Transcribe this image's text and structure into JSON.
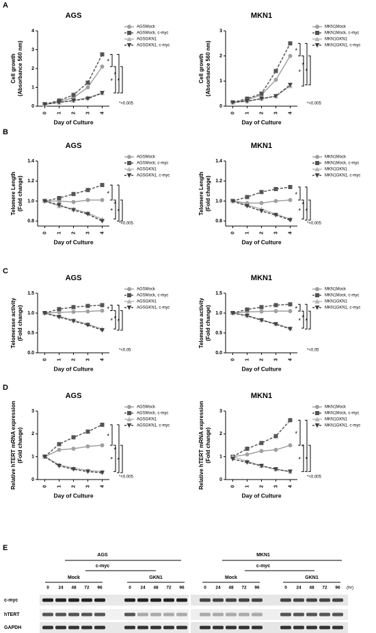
{
  "panel_labels": [
    "A",
    "B",
    "C",
    "D",
    "E"
  ],
  "chart_data": [
    {
      "type": "line",
      "title": "AGS",
      "xlabel": "Day of Culture",
      "ylabel": [
        "Cell growth",
        "(Absorbance 560 nm)"
      ],
      "x": [
        0,
        1,
        2,
        3,
        4
      ],
      "xlim": [
        -0.5,
        4.5
      ],
      "xticks": [
        0,
        1,
        2,
        3,
        4
      ],
      "ylim": [
        0,
        4
      ],
      "yticks": [
        0,
        1,
        2,
        3,
        4
      ],
      "series": [
        {
          "name": "AGSMock",
          "color": "#a0a0a0",
          "marker": "circle",
          "dashed": false,
          "values": [
            0.1,
            0.25,
            0.45,
            1.0,
            2.1
          ]
        },
        {
          "name": "AGSMock, c-myc",
          "color": "#555555",
          "marker": "square",
          "dashed": true,
          "values": [
            0.1,
            0.3,
            0.6,
            1.25,
            2.75
          ]
        },
        {
          "name": "AGSGKN1",
          "color": "#b4b4b4",
          "marker": "triangle",
          "dashed": false,
          "values": [
            0.1,
            0.2,
            0.3,
            0.45,
            0.7
          ]
        },
        {
          "name": "AGSGKN1, c-myc",
          "color": "#444444",
          "marker": "triangle-down",
          "dashed": true,
          "values": [
            0.1,
            0.2,
            0.3,
            0.4,
            0.7
          ]
        }
      ],
      "brackets": [
        "*",
        "*",
        "*",
        "*"
      ],
      "note": "*<0.005"
    },
    {
      "type": "line",
      "title": "MKN1",
      "xlabel": "Day of Culture",
      "ylabel": [
        "Cell growth",
        "(Absorbance 560 nm)"
      ],
      "x": [
        0,
        1,
        2,
        3,
        4
      ],
      "xlim": [
        -0.5,
        4.5
      ],
      "xticks": [
        0,
        1,
        2,
        3,
        4
      ],
      "ylim": [
        0,
        3
      ],
      "yticks": [
        0,
        1,
        2,
        3
      ],
      "series": [
        {
          "name": "MKN1Mock",
          "color": "#a0a0a0",
          "marker": "circle",
          "dashed": false,
          "values": [
            0.15,
            0.25,
            0.45,
            1.05,
            2.0
          ]
        },
        {
          "name": "MKN1Mock, c-myc",
          "color": "#555555",
          "marker": "square",
          "dashed": true,
          "values": [
            0.15,
            0.3,
            0.5,
            1.4,
            2.5
          ]
        },
        {
          "name": "MKN1GKN1",
          "color": "#b4b4b4",
          "marker": "triangle",
          "dashed": false,
          "values": [
            0.15,
            0.2,
            0.3,
            0.4,
            0.8
          ]
        },
        {
          "name": "MKN1GKN1, c-myc",
          "color": "#444444",
          "marker": "triangle-down",
          "dashed": true,
          "values": [
            0.15,
            0.2,
            0.3,
            0.4,
            0.85
          ]
        }
      ],
      "brackets": [
        "*",
        "*",
        "*",
        "*"
      ],
      "note": "*<0.005"
    },
    {
      "type": "line",
      "title": "AGS",
      "xlabel": "Day of Culture",
      "ylabel": [
        "Telomere Length",
        "(Fold change)"
      ],
      "x": [
        0,
        1,
        2,
        3,
        4
      ],
      "xlim": [
        -0.5,
        4.5
      ],
      "xticks": [
        0,
        1,
        2,
        3,
        4
      ],
      "ylim": [
        0.75,
        1.4
      ],
      "yticks": [
        {
          "value": 0.8,
          "label": "0.8"
        },
        {
          "value": 1,
          "label": "1.0"
        },
        {
          "value": 1.2,
          "label": "1.2"
        },
        {
          "value": 1.4,
          "label": "1.4"
        }
      ],
      "series": [
        {
          "name": "AGSMock",
          "color": "#a0a0a0",
          "marker": "circle",
          "dashed": false,
          "values": [
            1.0,
            1.0,
            0.99,
            1.01,
            1.01
          ]
        },
        {
          "name": "AGSMock, c-myc",
          "color": "#555555",
          "marker": "square",
          "dashed": true,
          "values": [
            1.0,
            1.03,
            1.07,
            1.11,
            1.16
          ]
        },
        {
          "name": "AGSGKN1",
          "color": "#b4b4b4",
          "marker": "triangle",
          "dashed": false,
          "values": [
            1.0,
            0.95,
            0.92,
            0.88,
            0.82
          ]
        },
        {
          "name": "AGSGKN1, c-myc",
          "color": "#444444",
          "marker": "triangle-down",
          "dashed": true,
          "values": [
            1.0,
            0.96,
            0.91,
            0.87,
            0.8
          ]
        }
      ],
      "brackets": [
        "*",
        "*",
        "*",
        "*"
      ],
      "note": "*<0.005"
    },
    {
      "type": "line",
      "title": "MKN1",
      "xlabel": "Day of Culture",
      "ylabel": [
        "Telomere Length",
        "(Fold change)"
      ],
      "x": [
        0,
        1,
        2,
        3,
        4
      ],
      "xlim": [
        -0.5,
        4.5
      ],
      "xticks": [
        0,
        1,
        2,
        3,
        4
      ],
      "ylim": [
        0.75,
        1.4
      ],
      "yticks": [
        {
          "value": 0.8,
          "label": "0.8"
        },
        {
          "value": 1,
          "label": "1.0"
        },
        {
          "value": 1.2,
          "label": "1.2"
        },
        {
          "value": 1.4,
          "label": "1.4"
        }
      ],
      "series": [
        {
          "name": "MKN1Mock",
          "color": "#a0a0a0",
          "marker": "circle",
          "dashed": false,
          "values": [
            1.0,
            0.98,
            0.98,
            1.0,
            1.01
          ]
        },
        {
          "name": "MKN1Mock, c-myc",
          "color": "#555555",
          "marker": "square",
          "dashed": true,
          "values": [
            1.0,
            1.04,
            1.09,
            1.12,
            1.14
          ]
        },
        {
          "name": "MKN1GKN1",
          "color": "#b4b4b4",
          "marker": "triangle",
          "dashed": false,
          "values": [
            1.0,
            0.96,
            0.92,
            0.87,
            0.82
          ]
        },
        {
          "name": "MKN1GKN1, c-myc",
          "color": "#444444",
          "marker": "triangle-down",
          "dashed": true,
          "values": [
            1.0,
            0.95,
            0.9,
            0.86,
            0.81
          ]
        }
      ],
      "brackets": [
        "*",
        "*",
        "*",
        "*"
      ],
      "note": "*<0.005"
    },
    {
      "type": "line",
      "title": "AGS",
      "xlabel": "Day of Culture",
      "ylabel": [
        "Telomerase activity",
        "(Fold change)"
      ],
      "x": [
        0,
        1,
        2,
        3,
        4
      ],
      "xlim": [
        -0.5,
        4.5
      ],
      "xticks": [
        0,
        1,
        2,
        3,
        4
      ],
      "ylim": [
        0,
        1.5
      ],
      "yticks": [
        {
          "value": 0,
          "label": "0.0"
        },
        {
          "value": 0.5,
          "label": "0.5"
        },
        {
          "value": 1,
          "label": "1.0"
        },
        {
          "value": 1.5,
          "label": "1.5"
        }
      ],
      "series": [
        {
          "name": "AGSMock",
          "color": "#a0a0a0",
          "marker": "circle",
          "dashed": false,
          "values": [
            1.0,
            1.02,
            1.03,
            1.04,
            1.06
          ]
        },
        {
          "name": "AGSMock, c-myc",
          "color": "#555555",
          "marker": "square",
          "dashed": true,
          "values": [
            1.0,
            1.1,
            1.15,
            1.18,
            1.2
          ]
        },
        {
          "name": "AGSGKN1",
          "color": "#b4b4b4",
          "marker": "triangle",
          "dashed": false,
          "values": [
            1.0,
            0.92,
            0.82,
            0.72,
            0.6
          ]
        },
        {
          "name": "AGSGKN1, c-myc",
          "color": "#444444",
          "marker": "triangle-down",
          "dashed": true,
          "values": [
            1.0,
            0.9,
            0.8,
            0.7,
            0.57
          ]
        }
      ],
      "brackets": [
        "*",
        "*",
        "*",
        "*"
      ],
      "note": "*<0.05"
    },
    {
      "type": "line",
      "title": "MKN1",
      "xlabel": "Day of Culture",
      "ylabel": [
        "Telomerase activity",
        "(Fold change)"
      ],
      "x": [
        0,
        1,
        2,
        3,
        4
      ],
      "xlim": [
        -0.5,
        4.5
      ],
      "xticks": [
        0,
        1,
        2,
        3,
        4
      ],
      "ylim": [
        0,
        1.5
      ],
      "yticks": [
        {
          "value": 0,
          "label": "0.0"
        },
        {
          "value": 0.5,
          "label": "0.5"
        },
        {
          "value": 1,
          "label": "1.0"
        },
        {
          "value": 1.5,
          "label": "1.5"
        }
      ],
      "series": [
        {
          "name": "MKN1Mock",
          "color": "#a0a0a0",
          "marker": "circle",
          "dashed": false,
          "values": [
            1.0,
            1.03,
            1.04,
            1.05,
            1.05
          ]
        },
        {
          "name": "MKN1Mock, c-myc",
          "color": "#555555",
          "marker": "square",
          "dashed": true,
          "values": [
            1.0,
            1.09,
            1.15,
            1.2,
            1.22
          ]
        },
        {
          "name": "MKN1GKN1",
          "color": "#b4b4b4",
          "marker": "triangle",
          "dashed": false,
          "values": [
            1.0,
            0.94,
            0.83,
            0.73,
            0.62
          ]
        },
        {
          "name": "MKN1GKN1, c-myc",
          "color": "#444444",
          "marker": "triangle-down",
          "dashed": true,
          "values": [
            1.0,
            0.93,
            0.82,
            0.72,
            0.6
          ]
        }
      ],
      "brackets": [
        "*",
        "*",
        "*",
        "*"
      ],
      "note": "*<0.05"
    },
    {
      "type": "line",
      "title": "AGS",
      "xlabel": "Day of Culture",
      "ylabel": [
        "Relative hTERT mRNA expression",
        "(Fold change)"
      ],
      "x": [
        0,
        1,
        2,
        3,
        4
      ],
      "xlim": [
        -0.5,
        4.5
      ],
      "xticks": [
        0,
        1,
        2,
        3,
        4
      ],
      "ylim": [
        0,
        3
      ],
      "yticks": [
        0,
        1,
        2,
        3
      ],
      "series": [
        {
          "name": "AGSMock",
          "color": "#a0a0a0",
          "marker": "circle",
          "dashed": false,
          "values": [
            1.0,
            1.3,
            1.35,
            1.45,
            1.5
          ]
        },
        {
          "name": "AGSMock, c-myc",
          "color": "#555555",
          "marker": "square",
          "dashed": true,
          "values": [
            1.0,
            1.55,
            1.85,
            2.1,
            2.4
          ]
        },
        {
          "name": "AGSGKN1",
          "color": "#b4b4b4",
          "marker": "triangle",
          "dashed": false,
          "values": [
            1.0,
            0.65,
            0.5,
            0.4,
            0.35
          ]
        },
        {
          "name": "AGSGKN1, c-myc",
          "color": "#444444",
          "marker": "triangle-down",
          "dashed": true,
          "values": [
            1.0,
            0.6,
            0.45,
            0.35,
            0.3
          ]
        }
      ],
      "brackets": [
        "*",
        "*",
        "*",
        "*"
      ],
      "note": "*<0.005"
    },
    {
      "type": "line",
      "title": "MKN1",
      "xlabel": "Day of Culture",
      "ylabel": [
        "Relative hTERT mRNA expression",
        "(Fold change)"
      ],
      "x": [
        0,
        1,
        2,
        3,
        4
      ],
      "xlim": [
        -0.5,
        4.5
      ],
      "xticks": [
        0,
        1,
        2,
        3,
        4
      ],
      "ylim": [
        0,
        3
      ],
      "yticks": [
        0,
        1,
        2,
        3
      ],
      "series": [
        {
          "name": "MKN1Mock",
          "color": "#a0a0a0",
          "marker": "circle",
          "dashed": false,
          "values": [
            1.0,
            1.1,
            1.25,
            1.3,
            1.5
          ]
        },
        {
          "name": "MKN1Mock, c-myc",
          "color": "#555555",
          "marker": "square",
          "dashed": true,
          "values": [
            1.0,
            1.35,
            1.6,
            1.9,
            2.6
          ]
        },
        {
          "name": "MKN1GKN1",
          "color": "#b4b4b4",
          "marker": "triangle",
          "dashed": false,
          "values": [
            1.0,
            0.8,
            0.6,
            0.45,
            0.35
          ]
        },
        {
          "name": "MKN1GKN1, c-myc",
          "color": "#444444",
          "marker": "triangle-down",
          "dashed": true,
          "values": [
            0.9,
            0.75,
            0.6,
            0.45,
            0.35
          ]
        }
      ],
      "brackets": [
        "*",
        "*",
        "*",
        "*"
      ],
      "note": "*<0.005"
    }
  ],
  "blot": {
    "groups": [
      "AGS",
      "MKN1"
    ],
    "treatments": [
      "c-myc",
      "c-myc"
    ],
    "conditions": [
      "Mock",
      "GKN1",
      "Mock",
      "GKN1"
    ],
    "times": [
      "0",
      "24",
      "48",
      "72",
      "96",
      "0",
      "24",
      "48",
      "72",
      "96",
      "0",
      "24",
      "48",
      "72",
      "96",
      "0",
      "24",
      "48",
      "72",
      "96"
    ],
    "unit": "(hr)",
    "rows": [
      "c-myc",
      "hTERT",
      "GAPDH"
    ]
  }
}
